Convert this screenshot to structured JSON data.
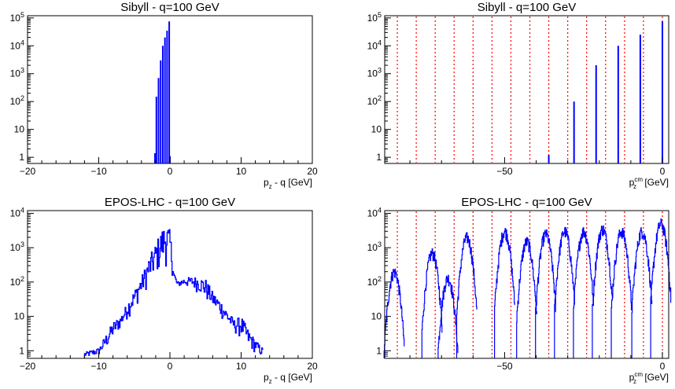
{
  "chart_data": [
    {
      "type": "histogram",
      "title": "Sibyll - q=100 GeV",
      "xlabel": "p_z - q [GeV]",
      "xlim": [
        -20,
        20
      ],
      "ylim": [
        0.6,
        120000
      ],
      "log_y": true,
      "xticks": [
        -20,
        -10,
        0,
        10,
        20
      ],
      "yticks": [
        1,
        10,
        100,
        1000,
        10000,
        100000
      ],
      "series_color": "#0000ff",
      "bins": [
        {
          "x": -2.1,
          "y": 1.4
        },
        {
          "x": -1.9,
          "y": 150
        },
        {
          "x": -1.6,
          "y": 700
        },
        {
          "x": -1.3,
          "y": 3000
        },
        {
          "x": -1.0,
          "y": 10000
        },
        {
          "x": -0.7,
          "y": 20000
        },
        {
          "x": -0.4,
          "y": 35000
        },
        {
          "x": -0.1,
          "y": 75000
        },
        {
          "x": 0.0,
          "y": 1.1
        }
      ]
    },
    {
      "type": "histogram",
      "title": "Sibyll - q=100 GeV",
      "xlabel": "p_z^cm [GeV]",
      "xlim": [
        -88,
        2
      ],
      "ylim": [
        0.6,
        120000
      ],
      "log_y": true,
      "xticks": [
        -50,
        0
      ],
      "yticks": [
        1,
        10,
        100,
        1000,
        10000,
        100000
      ],
      "series_color": "#0000ff",
      "reference_color": "#ff0000",
      "reference_lines": [
        -84,
        -78,
        -72,
        -66,
        -60,
        -54,
        -48,
        -42,
        -36,
        -30,
        -24,
        -18,
        -12,
        -6,
        0
      ],
      "bins": [
        {
          "x": -36,
          "y": 1.2
        },
        {
          "x": -28,
          "y": 100
        },
        {
          "x": -21,
          "y": 2000
        },
        {
          "x": -14,
          "y": 10000
        },
        {
          "x": -7,
          "y": 25000
        },
        {
          "x": 0,
          "y": 75000
        }
      ]
    },
    {
      "type": "histogram",
      "title": "EPOS-LHC - q=100 GeV",
      "xlabel": "p_z - q [GeV]",
      "xlim": [
        -20,
        20
      ],
      "ylim": [
        0.6,
        12000
      ],
      "log_y": true,
      "xticks": [
        -20,
        -10,
        0,
        10,
        20
      ],
      "yticks": [
        1,
        10,
        100,
        1000,
        10000
      ],
      "series_color": "#0000ff",
      "envelope_upper": [
        [
          -12,
          0.9
        ],
        [
          -10,
          1.2
        ],
        [
          -9,
          3
        ],
        [
          -8,
          7
        ],
        [
          -7,
          10
        ],
        [
          -6,
          25
        ],
        [
          -5,
          60
        ],
        [
          -4,
          150
        ],
        [
          -3,
          500
        ],
        [
          -2,
          1400
        ],
        [
          -1.5,
          2500
        ],
        [
          -1,
          4000
        ],
        [
          -0.5,
          5500
        ],
        [
          0,
          3000
        ],
        [
          0.5,
          200
        ],
        [
          1,
          100
        ],
        [
          2,
          130
        ],
        [
          3,
          140
        ],
        [
          4,
          140
        ],
        [
          5,
          120
        ],
        [
          6,
          50
        ],
        [
          7,
          30
        ],
        [
          8,
          15
        ],
        [
          9,
          8
        ],
        [
          10,
          10
        ],
        [
          11,
          4
        ],
        [
          12,
          2
        ],
        [
          13,
          1.2
        ]
      ],
      "envelope_lower": [
        [
          -12,
          0.6
        ],
        [
          -10,
          0.7
        ],
        [
          -9,
          1
        ],
        [
          -8,
          2
        ],
        [
          -7,
          4
        ],
        [
          -6,
          8
        ],
        [
          -5,
          15
        ],
        [
          -4,
          35
        ],
        [
          -3,
          70
        ],
        [
          -2,
          120
        ],
        [
          -1.5,
          160
        ],
        [
          -1,
          220
        ],
        [
          -0.5,
          250
        ],
        [
          0,
          200
        ],
        [
          0.5,
          120
        ],
        [
          1,
          70
        ],
        [
          2,
          70
        ],
        [
          3,
          60
        ],
        [
          4,
          45
        ],
        [
          5,
          25
        ],
        [
          6,
          15
        ],
        [
          7,
          9
        ],
        [
          8,
          5
        ],
        [
          9,
          3
        ],
        [
          10,
          2
        ],
        [
          11,
          1
        ],
        [
          12,
          0.8
        ],
        [
          13,
          0.6
        ]
      ]
    },
    {
      "type": "histogram",
      "title": "EPOS-LHC - q=100 GeV",
      "xlabel": "p_z^cm [GeV]",
      "xlim": [
        -88,
        2
      ],
      "ylim": [
        0.6,
        12000
      ],
      "log_y": true,
      "xticks": [
        -50,
        0
      ],
      "yticks": [
        1,
        10,
        100,
        1000,
        10000
      ],
      "series_color": "#0000ff",
      "reference_color": "#ff0000",
      "reference_lines": [
        -84,
        -78,
        -72,
        -66,
        -60,
        -54,
        -48,
        -42,
        -36,
        -30,
        -24,
        -18,
        -12,
        -6,
        0
      ],
      "peaks": [
        {
          "x": -85,
          "y": 200
        },
        {
          "x": -73,
          "y": 700
        },
        {
          "x": -68,
          "y": 130
        },
        {
          "x": -62,
          "y": 2000
        },
        {
          "x": -50,
          "y": 3000
        },
        {
          "x": -43,
          "y": 1500
        },
        {
          "x": -37,
          "y": 2500
        },
        {
          "x": -31,
          "y": 3000
        },
        {
          "x": -25,
          "y": 3000
        },
        {
          "x": -19,
          "y": 3500
        },
        {
          "x": -13,
          "y": 3000
        },
        {
          "x": -6.5,
          "y": 3000
        },
        {
          "x": -0.5,
          "y": 5000
        }
      ]
    }
  ]
}
